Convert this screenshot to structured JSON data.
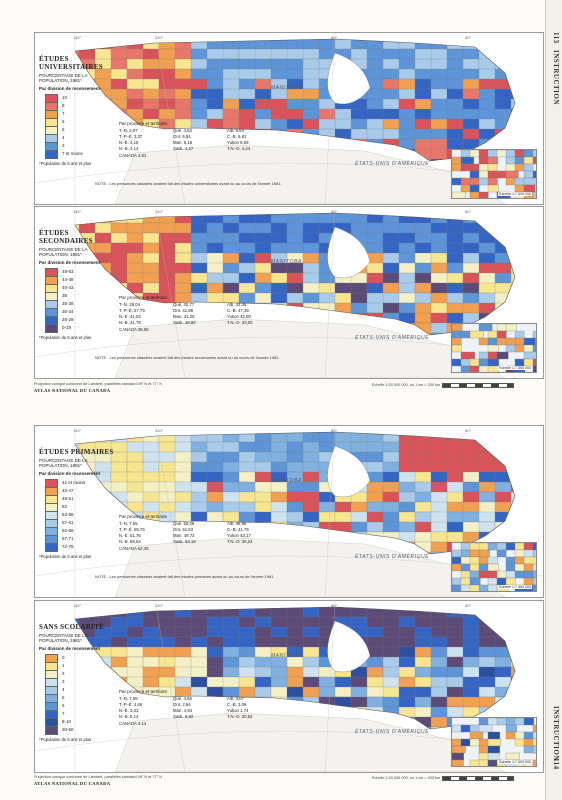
{
  "side_top": {
    "number": "113",
    "label": "INSTRUCTION"
  },
  "side_bottom": {
    "number": "114",
    "label": "INSTRUCTION"
  },
  "colors": {
    "red": "#d9545a",
    "orange": "#f0a050",
    "yellow": "#f7e590",
    "cream": "#f4f0c6",
    "ltblue": "#a9cbe9",
    "blue": "#5e95d8",
    "dkblue": "#3565c4",
    "purple": "#5c4b78"
  },
  "geo": {
    "manitoba": "MANITOBA",
    "usa": "ÉTATS-UNIS D'AMÉRIQUE"
  },
  "panels": [
    {
      "title": "ÉTUDES UNIVERSITAIRES",
      "subtitle": "POURCENTAGE DE LA POPULATION, 1981*",
      "division_label": "Par division de recensement",
      "legend": [
        "10",
        "8",
        "7",
        "6",
        "5",
        "4",
        "3",
        "7 et moins"
      ],
      "legend_colors": [
        "#d9545a",
        "#e8776a",
        "#f0a050",
        "#f7e590",
        "#f4f0c6",
        "#a9cbe9",
        "#5e95d8",
        "#3565c4"
      ],
      "pop_note": "*Population de 5 ans et plus",
      "stats_title": "Par province et territoire",
      "stats": [
        "T.-N. 2,07",
        "Qué. 4,53",
        "Alb. 5,64",
        "T.-P.-É. 3,37",
        "Ont. 5,84",
        "C.-B. 6,81",
        "N.-É. 4,15",
        "Man. 5,18",
        "Yukon 6,09",
        "N.-B. 3,14",
        "Sask. 4,27",
        "T.N.-O. 4,24"
      ],
      "canada": "CANADA 4,81",
      "notes": "NOTE : Les personnes classées avaient fait des études universitaires avant ou au cours de l'année 1981.",
      "inset_scale": "Échelle 1:7 500 000"
    },
    {
      "title": "ÉTUDES SECONDAIRES",
      "subtitle": "POURCENTAGE DE LA POPULATION, 1981*",
      "division_label": "Par division de recensement",
      "legend": [
        "48-53",
        "44-48",
        "40-43",
        "38",
        "35-38",
        "30-34",
        "25-29",
        "0-19"
      ],
      "legend_colors": [
        "#d9545a",
        "#f0a050",
        "#f7e590",
        "#f4f0c6",
        "#a9cbe9",
        "#5e95d8",
        "#3565c4",
        "#5c4b78"
      ],
      "pop_note": "*Population de 5 ans et plus",
      "stats_title": "Par province et territoire",
      "stats": [
        "T.-N. 28,04",
        "Qué. 32,77",
        "Alb. 42,35",
        "T.-P.-É. 27,79",
        "Ont. 41,88",
        "C.-B. 47,39",
        "N.-É. 41,03",
        "Man. 41,25",
        "Yukon 42,80",
        "N.-B. 31,78",
        "Sask. 38,92",
        "T.N.-O. 33,00"
      ],
      "canada": "CANADA 38,55",
      "notes": "NOTE : Les personnes classées avaient fait des études secondaires avant ou au cours de l'année 1981.",
      "inset_scale": "Échelle 1:7 500 000"
    },
    {
      "title": "ÉTUDES PRIMAIRES",
      "subtitle": "POURCENTAGE DE LA POPULATION, 1981*",
      "division_label": "Par division de recensement",
      "legend": [
        "42 et moins",
        "43-47",
        "48-51",
        "52",
        "53-56",
        "57-61",
        "62-66",
        "67-71",
        "72-78"
      ],
      "legend_colors": [
        "#d9545a",
        "#f0a050",
        "#f7e590",
        "#f4f0c6",
        "#cfe2ef",
        "#a9cbe9",
        "#7fb0e0",
        "#5e95d8",
        "#3565c4"
      ],
      "pop_note": "*Population de 5 ans et plus",
      "stats_title": "Par province et territoire",
      "stats": [
        "T.-N. 7,55",
        "Qué. 58,09",
        "Alb. 46,96",
        "T.-P.-É. 58,76",
        "Ont. 51,53",
        "C.-B. 41,75",
        "N.-É. 51,76",
        "Man. 49,72",
        "Yukon 43,17",
        "N.-B. 58,54",
        "Sask. 53,19",
        "T.N.-O. 36,24"
      ],
      "canada": "CANADA 52,45",
      "notes": "NOTE : Les personnes classées avaient fait des études primaires avant ou au cours de l'année 1981.",
      "inset_scale": "Échelle 1:7 500 000"
    },
    {
      "title": "SANS SCOLARITÉ",
      "subtitle": "POURCENTAGE DE LA POPULATION, 1981*",
      "division_label": "Par division de recensement",
      "legend": [
        "0",
        "1",
        "2",
        "3",
        "4",
        "5",
        "6",
        "7",
        "8-10",
        "20-60"
      ],
      "legend_colors": [
        "#f0a050",
        "#f7e590",
        "#f4f0c6",
        "#cfe2ef",
        "#a9cbe9",
        "#7fb0e0",
        "#5e95d8",
        "#3565c4",
        "#2c4fa0",
        "#5c4b78"
      ],
      "pop_note": "*Population de 5 ans et plus",
      "stats_title": "Par province et territoire",
      "stats": [
        "T.-N. 7,55",
        "Qué. 4,65",
        "Alb. 3,07",
        "T.-P.-É. 4,65",
        "Ont. 2,64",
        "C.-B. 3,06",
        "N.-É. 3,03",
        "Man. 4,84",
        "Yukon 1,74",
        "N.-B. 5,14",
        "Sask. 5,82",
        "T.N.-O. 30,52"
      ],
      "canada": "CANADA 4,14",
      "notes": "",
      "inset_scale": "Échelle 1:7 500 000"
    }
  ],
  "footer_top": {
    "projection": "Projection conique conforme de Lambert, parallèles standard 49° N et 77° N",
    "atlas": "ATLAS NATIONAL DU CANADA",
    "scale": "Échelle 1:20 000 000, ou 1 cm = 200 km"
  },
  "footer_bottom": {
    "projection": "Projection conique conforme de Lambert, parallèles standard 49° N et 77° N",
    "atlas": "ATLAS NATIONAL DU CANADA",
    "scale": "Échelle 1:20 000 000, ou 1 cm = 200 km"
  },
  "coords": {
    "w140": "140°",
    "w120": "120°",
    "w80": "80°",
    "w60": "60°"
  }
}
